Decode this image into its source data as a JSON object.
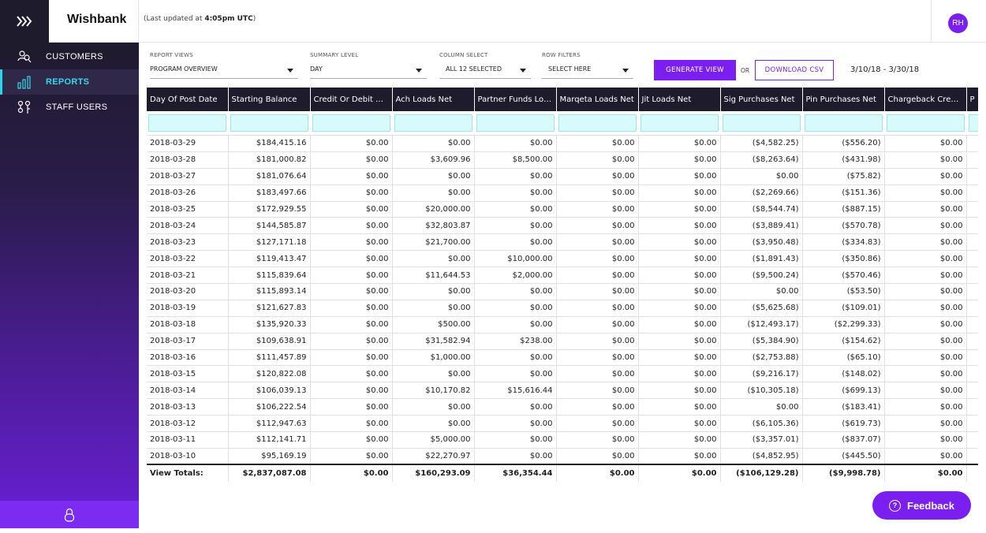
{
  "header": {
    "app_name": "Wishbank",
    "updated_prefix": "(Last updated at ",
    "updated_time": "4:05pm UTC",
    "updated_suffix": ")",
    "avatar_initials": "RH"
  },
  "sidebar": {
    "items": [
      {
        "label": "CUSTOMERS",
        "icon": "customers-icon",
        "active": false
      },
      {
        "label": "REPORTS",
        "icon": "reports-icon",
        "active": true
      },
      {
        "label": "STAFF USERS",
        "icon": "staff-users-icon",
        "active": false
      }
    ],
    "footer_icon": "lock-icon"
  },
  "filters": {
    "report_views": {
      "label": "REPORT VIEWS",
      "value": "PROGRAM OVERVIEW"
    },
    "summary_level": {
      "label": "SUMMARY LEVEL",
      "value": "DAY"
    },
    "column_select": {
      "label": "COLUMN SELECT",
      "value": "ALL 12 SELECTED"
    },
    "row_filters": {
      "label": "ROW FILTERS",
      "value": "SELECT HERE"
    },
    "generate_label": "GENERATE VIEW",
    "or_label": "OR",
    "download_label": "DOWNLOAD CSV",
    "date_range": "3/10/18 - 3/30/18"
  },
  "table": {
    "columns": [
      "Day Of Post Date",
      "Starting Balance",
      "Credit Or Debit Ca...",
      "Ach Loads Net",
      "Partner Funds Loa...",
      "Marqeta Loads Net",
      "Jit Loads Net",
      "Sig Purchases Net",
      "Pin Purchases Net",
      "Chargeback Credits",
      "P"
    ],
    "rows": [
      [
        "2018-03-29",
        "$184,415.16",
        "$0.00",
        "$0.00",
        "$0.00",
        "$0.00",
        "$0.00",
        "($4,582.25)",
        "($556.20)",
        "$0.00"
      ],
      [
        "2018-03-28",
        "$181,000.82",
        "$0.00",
        "$3,609.96",
        "$8,500.00",
        "$0.00",
        "$0.00",
        "($8,263.64)",
        "($431.98)",
        "$0.00"
      ],
      [
        "2018-03-27",
        "$181,076.64",
        "$0.00",
        "$0.00",
        "$0.00",
        "$0.00",
        "$0.00",
        "$0.00",
        "($75.82)",
        "$0.00"
      ],
      [
        "2018-03-26",
        "$183,497.66",
        "$0.00",
        "$0.00",
        "$0.00",
        "$0.00",
        "$0.00",
        "($2,269.66)",
        "($151.36)",
        "$0.00"
      ],
      [
        "2018-03-25",
        "$172,929.55",
        "$0.00",
        "$20,000.00",
        "$0.00",
        "$0.00",
        "$0.00",
        "($8,544.74)",
        "($887.15)",
        "$0.00"
      ],
      [
        "2018-03-24",
        "$144,585.87",
        "$0.00",
        "$32,803.87",
        "$0.00",
        "$0.00",
        "$0.00",
        "($3,889.41)",
        "($570.78)",
        "$0.00"
      ],
      [
        "2018-03-23",
        "$127,171.18",
        "$0.00",
        "$21,700.00",
        "$0.00",
        "$0.00",
        "$0.00",
        "($3,950.48)",
        "($334.83)",
        "$0.00"
      ],
      [
        "2018-03-22",
        "$119,413.47",
        "$0.00",
        "$0.00",
        "$10,000.00",
        "$0.00",
        "$0.00",
        "($1,891.43)",
        "($350.86)",
        "$0.00"
      ],
      [
        "2018-03-21",
        "$115,839.64",
        "$0.00",
        "$11,644.53",
        "$2,000.00",
        "$0.00",
        "$0.00",
        "($9,500.24)",
        "($570.46)",
        "$0.00"
      ],
      [
        "2018-03-20",
        "$115,893.14",
        "$0.00",
        "$0.00",
        "$0.00",
        "$0.00",
        "$0.00",
        "$0.00",
        "($53.50)",
        "$0.00"
      ],
      [
        "2018-03-19",
        "$121,627.83",
        "$0.00",
        "$0.00",
        "$0.00",
        "$0.00",
        "$0.00",
        "($5,625.68)",
        "($109.01)",
        "$0.00"
      ],
      [
        "2018-03-18",
        "$135,920.33",
        "$0.00",
        "$500.00",
        "$0.00",
        "$0.00",
        "$0.00",
        "($12,493.17)",
        "($2,299.33)",
        "$0.00"
      ],
      [
        "2018-03-17",
        "$109,638.91",
        "$0.00",
        "$31,582.94",
        "$238.00",
        "$0.00",
        "$0.00",
        "($5,384.90)",
        "($154.62)",
        "$0.00"
      ],
      [
        "2018-03-16",
        "$111,457.89",
        "$0.00",
        "$1,000.00",
        "$0.00",
        "$0.00",
        "$0.00",
        "($2,753.88)",
        "($65.10)",
        "$0.00"
      ],
      [
        "2018-03-15",
        "$120,822.08",
        "$0.00",
        "$0.00",
        "$0.00",
        "$0.00",
        "$0.00",
        "($9,216.17)",
        "($148.02)",
        "$0.00"
      ],
      [
        "2018-03-14",
        "$106,039.13",
        "$0.00",
        "$10,170.82",
        "$15,616.44",
        "$0.00",
        "$0.00",
        "($10,305.18)",
        "($699.13)",
        "$0.00"
      ],
      [
        "2018-03-13",
        "$106,222.54",
        "$0.00",
        "$0.00",
        "$0.00",
        "$0.00",
        "$0.00",
        "$0.00",
        "($183.41)",
        "$0.00"
      ],
      [
        "2018-03-12",
        "$112,947.63",
        "$0.00",
        "$0.00",
        "$0.00",
        "$0.00",
        "$0.00",
        "($6,105.36)",
        "($619.73)",
        "$0.00"
      ],
      [
        "2018-03-11",
        "$112,141.71",
        "$0.00",
        "$5,000.00",
        "$0.00",
        "$0.00",
        "$0.00",
        "($3,357.01)",
        "($837.07)",
        "$0.00"
      ],
      [
        "2018-03-10",
        "$95,169.19",
        "$0.00",
        "$22,270.97",
        "$0.00",
        "$0.00",
        "$0.00",
        "($4,852.95)",
        "($445.50)",
        "$0.00"
      ]
    ],
    "totals": [
      "View Totals:",
      "$2,837,087.08",
      "$0.00",
      "$160,293.09",
      "$36,354.44",
      "$0.00",
      "$0.00",
      "($106,129.28)",
      "($9,998.78)",
      "$0.00"
    ]
  },
  "feedback_label": "Feedback",
  "colors": {
    "accent": "#7a1ff0",
    "sidebar_dark": "#1e1b2c",
    "active_cyan": "#34d8ea",
    "filter_cell": "#d7fafc"
  }
}
